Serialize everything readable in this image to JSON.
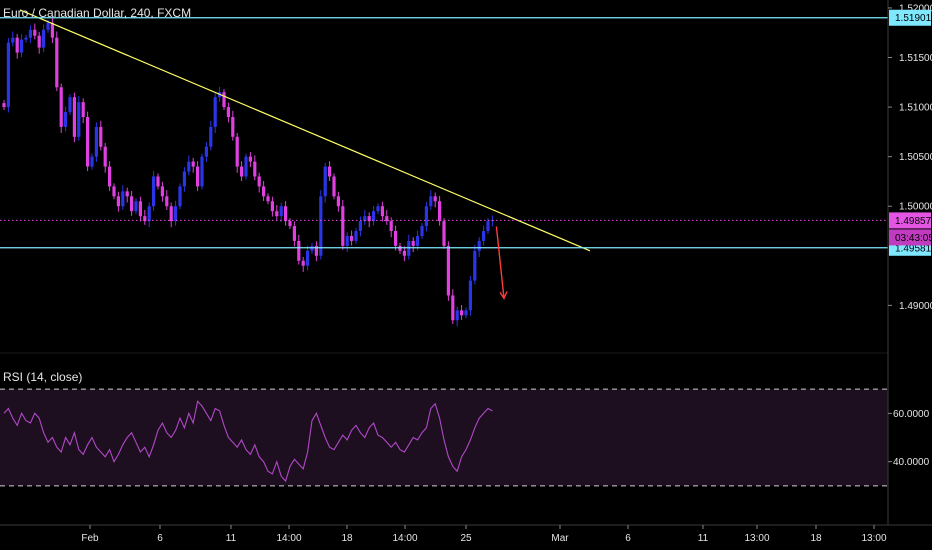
{
  "title": "Euro / Canadian Dollar, 240, FXCM",
  "rsi_label": "RSI (14, close)",
  "colors": {
    "bull": "#2a35e8",
    "bear": "#e040e0",
    "cyan_line": "#7fe8ff",
    "trend": "#ffff66",
    "arrow": "#ff3b3b",
    "rsi_line": "#b048c8",
    "rsi_band": "#1e0f20",
    "price_tag": "#e455e4",
    "timer_tag": "#c03bc0"
  },
  "chart_data": {
    "type": "candlestick",
    "y_ticks": [
      "1.52000",
      "1.51500",
      "1.51000",
      "1.50500",
      "1.50000",
      "1.49000"
    ],
    "ylim": [
      1.4855,
      1.5208
    ],
    "x_ticks": [
      "Feb",
      "6",
      "11",
      "14:00",
      "18",
      "14:00",
      "25",
      "Mar",
      "6",
      "11",
      "13:00",
      "18",
      "13:00"
    ],
    "horizontal_lines": [
      {
        "label": "1.51901",
        "value": 1.51901
      },
      {
        "label": "1.49581",
        "value": 1.49581
      }
    ],
    "last_price": {
      "label": "1.49857",
      "value": 1.49857
    },
    "countdown": "03:43:05",
    "trendline": {
      "from": 1.5198,
      "to": 1.4955
    },
    "closes": [
      1.51,
      1.5165,
      1.517,
      1.5155,
      1.5168,
      1.517,
      1.5178,
      1.5172,
      1.516,
      1.5178,
      1.5185,
      1.517,
      1.512,
      1.508,
      1.5095,
      1.511,
      1.507,
      1.5105,
      1.509,
      1.504,
      1.505,
      1.508,
      1.506,
      1.504,
      1.502,
      1.501,
      1.5,
      1.5015,
      1.501,
      1.4995,
      1.5005,
      1.499,
      1.4985,
      1.5,
      1.503,
      1.502,
      1.501,
      1.5,
      1.4985,
      1.5,
      1.502,
      1.5035,
      1.5045,
      1.504,
      1.502,
      1.505,
      1.506,
      1.508,
      1.511,
      1.5115,
      1.51,
      1.509,
      1.507,
      1.504,
      1.503,
      1.505,
      1.5045,
      1.503,
      1.502,
      1.501,
      1.5005,
      1.4995,
      1.499,
      1.5,
      1.4985,
      1.498,
      1.4965,
      1.4945,
      1.494,
      1.4955,
      1.496,
      1.495,
      1.501,
      1.504,
      1.503,
      1.501,
      1.5,
      1.496,
      1.497,
      1.4965,
      1.4975,
      1.4985,
      1.499,
      1.4985,
      1.4995,
      1.5,
      1.499,
      1.4985,
      1.4975,
      1.496,
      1.4955,
      1.495,
      1.4965,
      1.496,
      1.497,
      1.498,
      1.5,
      1.501,
      1.5005,
      1.4985,
      1.496,
      1.491,
      1.4885,
      1.4895,
      1.489,
      1.4895,
      1.4925,
      1.4955,
      1.4965,
      1.4975,
      1.4985,
      1.4986
    ],
    "rsi_ticks": [
      "60.0000",
      "40.0000"
    ],
    "rsi": [
      60,
      62,
      58,
      55,
      60,
      57,
      56,
      60,
      58,
      52,
      48,
      50,
      46,
      44,
      50,
      47,
      52,
      45,
      43,
      47,
      50,
      46,
      44,
      42,
      45,
      40,
      43,
      47,
      50,
      52,
      48,
      44,
      46,
      42,
      47,
      53,
      56,
      52,
      50,
      53,
      58,
      54,
      60,
      56,
      65,
      63,
      60,
      57,
      62,
      61,
      55,
      50,
      48,
      46,
      49,
      45,
      43,
      47,
      42,
      40,
      36,
      35,
      40,
      34,
      32,
      38,
      41,
      39,
      37,
      44,
      57,
      60,
      55,
      50,
      46,
      45,
      48,
      51,
      49,
      53,
      55,
      52,
      50,
      54,
      56,
      51,
      50,
      48,
      46,
      48,
      45,
      44,
      47,
      50,
      49,
      52,
      54,
      62,
      64,
      58,
      49,
      42,
      38,
      36,
      42,
      45,
      49,
      54,
      58,
      60,
      62,
      61
    ]
  }
}
